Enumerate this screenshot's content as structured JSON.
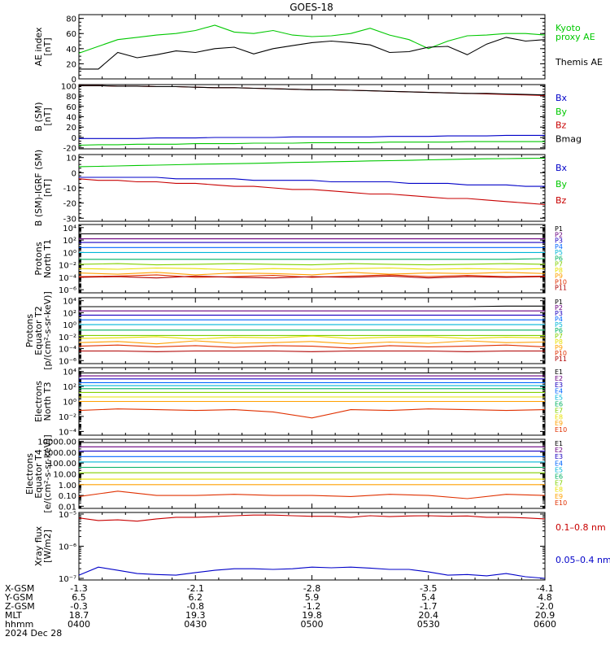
{
  "title": "GOES-18",
  "colors": {
    "black": "#000000",
    "green": "#00c800",
    "blue": "#0000c8",
    "red": "#c80000",
    "seq": [
      "#000000",
      "#6a0080",
      "#1a00c0",
      "#0066ff",
      "#00b6d8",
      "#00b060",
      "#80d000",
      "#e8e000",
      "#ffa000",
      "#e03000",
      "#b00000"
    ]
  },
  "panels": [
    {
      "id": "ae",
      "ylabel": [
        "AE index",
        "[nT]"
      ],
      "ticks": [
        {
          "t": "80",
          "v": 80
        },
        {
          "t": "60",
          "v": 60
        },
        {
          "t": "40",
          "v": 40
        },
        {
          "t": "20",
          "v": 20
        },
        {
          "t": "0",
          "v": 0
        }
      ],
      "ylim": [
        0,
        85
      ],
      "log": false,
      "legend": [
        {
          "text": "Kyoto",
          "color": "#00c800"
        },
        {
          "text": "proxy AE",
          "color": "#00c800"
        },
        {
          "text": "Themis AE",
          "color": "#000000"
        }
      ]
    },
    {
      "id": "bsm",
      "ylabel": [
        "B (SM)",
        "[nT]"
      ],
      "ticks": [
        {
          "t": "100",
          "v": 100
        },
        {
          "t": "80",
          "v": 80
        },
        {
          "t": "60",
          "v": 60
        },
        {
          "t": "40",
          "v": 40
        },
        {
          "t": "20",
          "v": 20
        },
        {
          "t": "0",
          "v": 0
        },
        {
          "t": "-20",
          "v": -20
        }
      ],
      "ylim": [
        -22,
        102
      ],
      "log": false,
      "legend": [
        {
          "text": "Bx",
          "color": "#0000c8"
        },
        {
          "text": "By",
          "color": "#00c800"
        },
        {
          "text": "Bz",
          "color": "#c80000"
        },
        {
          "text": "Bmag",
          "color": "#000000"
        }
      ]
    },
    {
      "id": "bigrf",
      "ylabel": [
        "B (SM)-IGRF (SM)",
        "[nT]"
      ],
      "ticks": [
        {
          "t": "10",
          "v": 10
        },
        {
          "t": "0",
          "v": 0
        },
        {
          "t": "-10",
          "v": -10
        },
        {
          "t": "-20",
          "v": -20
        },
        {
          "t": "-30",
          "v": -30
        }
      ],
      "ylim": [
        -32,
        12
      ],
      "log": false,
      "legend": [
        {
          "text": "Bx",
          "color": "#0000c8"
        },
        {
          "text": "By",
          "color": "#00c800"
        },
        {
          "text": "Bz",
          "color": "#c80000"
        }
      ]
    },
    {
      "id": "pn",
      "ylabel": [
        "Protons",
        "North T1"
      ],
      "ticks": [
        {
          "t": "10⁴",
          "v": 4
        },
        {
          "t": "10²",
          "v": 2
        },
        {
          "t": "10⁰",
          "v": 0
        },
        {
          "t": "10⁻²",
          "v": -2
        },
        {
          "t": "10⁻⁴",
          "v": -4
        },
        {
          "t": "10⁻⁶",
          "v": -6
        }
      ],
      "ylim": [
        -6.5,
        4.5
      ],
      "log": true,
      "legend": [
        "P1",
        "P2",
        "P3",
        "P4",
        "P5",
        "P6",
        "P7",
        "P8",
        "P9",
        "P10",
        "P11"
      ]
    },
    {
      "id": "pe",
      "ylabel": [
        "Protons",
        "Equator T2",
        "[p/(cm²-s-sr-keV)]"
      ],
      "ticks": [
        {
          "t": "10⁴",
          "v": 4
        },
        {
          "t": "10²",
          "v": 2
        },
        {
          "t": "10⁰",
          "v": 0
        },
        {
          "t": "10⁻²",
          "v": -2
        },
        {
          "t": "10⁻⁴",
          "v": -4
        },
        {
          "t": "10⁻⁶",
          "v": -6
        }
      ],
      "ylim": [
        -6.5,
        4.5
      ],
      "log": true,
      "legend": [
        "P1",
        "P2",
        "P3",
        "P4",
        "P5",
        "P6",
        "P7",
        "P8",
        "P9",
        "P10",
        "P11"
      ]
    },
    {
      "id": "en",
      "ylabel": [
        "Electrons",
        "North T3"
      ],
      "ticks": [
        {
          "t": "10⁴",
          "v": 4
        },
        {
          "t": "10²",
          "v": 2
        },
        {
          "t": "10⁰",
          "v": 0
        },
        {
          "t": "10⁻²",
          "v": -2
        },
        {
          "t": "10⁻⁴",
          "v": -4
        }
      ],
      "ylim": [
        -4.5,
        4.5
      ],
      "log": true,
      "legend": [
        "E1",
        "E2",
        "E3",
        "E4",
        "E5",
        "E6",
        "E7",
        "E8",
        "E9",
        "E10"
      ]
    },
    {
      "id": "ee",
      "ylabel": [
        "Electrons",
        "Equator T4",
        "[e/(cm²-s-sr-keV)]"
      ],
      "ticks": [
        {
          "t": "10000.00",
          "v": 4
        },
        {
          "t": "1000.00",
          "v": 3
        },
        {
          "t": "100.00",
          "v": 2
        },
        {
          "t": "10.00",
          "v": 1
        },
        {
          "t": "1.00",
          "v": 0
        },
        {
          "t": "0.10",
          "v": -1
        },
        {
          "t": "0.01",
          "v": -2
        }
      ],
      "ylim": [
        -2.2,
        4.2
      ],
      "log": true,
      "legend": [
        "E1",
        "E2",
        "E3",
        "E4",
        "E5",
        "E6",
        "E7",
        "E8",
        "E9",
        "E10"
      ]
    },
    {
      "id": "xray",
      "ylabel": [
        "Xray flux",
        "[W/m2]"
      ],
      "ticks": [
        {
          "t": "10⁻⁵",
          "v": -5
        },
        {
          "t": "10⁻⁶",
          "v": -6
        },
        {
          "t": "10⁻⁷",
          "v": -7
        }
      ],
      "ylim": [
        -7.05,
        -4.95
      ],
      "log": true,
      "legend": [
        {
          "text": "0.1–0.8 nm",
          "color": "#c80000"
        },
        {
          "text": "0.05–0.4 nm",
          "color": "#0000c8"
        }
      ]
    }
  ],
  "xaxis": {
    "rows": [
      {
        "label": "X-GSM",
        "values": [
          "-1.3",
          "-2.1",
          "-2.8",
          "-3.5",
          "-4.1"
        ]
      },
      {
        "label": "Y-GSM",
        "values": [
          "6.5",
          "6.2",
          "5.9",
          "5.4",
          "4.8"
        ]
      },
      {
        "label": "Z-GSM",
        "values": [
          "-0.3",
          "-0.8",
          "-1.2",
          "-1.7",
          "-2.0"
        ]
      },
      {
        "label": "MLT",
        "values": [
          "18.7",
          "19.3",
          "19.8",
          "20.4",
          "20.9"
        ]
      },
      {
        "label": "hhmm",
        "values": [
          "0400",
          "0430",
          "0500",
          "0530",
          "0600"
        ]
      }
    ],
    "date": "2024 Dec 28"
  },
  "chart_data": {
    "type": "line",
    "title": "GOES-18",
    "x_time_hhmm": [
      "0400",
      "0405",
      "0410",
      "0415",
      "0420",
      "0425",
      "0430",
      "0435",
      "0440",
      "0445",
      "0450",
      "0455",
      "0500",
      "0505",
      "0510",
      "0515",
      "0520",
      "0525",
      "0530",
      "0535",
      "0540",
      "0545",
      "0550",
      "0555",
      "0600"
    ],
    "ae": {
      "xlim_hours": [
        4,
        6
      ],
      "kyoto_proxy_ae": [
        34,
        43,
        52,
        55,
        58,
        60,
        64,
        71,
        62,
        60,
        64,
        58,
        56,
        57,
        60,
        67,
        58,
        52,
        40,
        50,
        57,
        58,
        60,
        60,
        58
      ],
      "themis_ae": [
        13,
        13,
        35,
        28,
        32,
        37,
        35,
        40,
        42,
        33,
        40,
        44,
        48,
        50,
        48,
        45,
        35,
        36,
        42,
        43,
        32,
        46,
        55,
        50,
        52
      ]
    },
    "b_sm": {
      "Bx": [
        -2,
        -2,
        -2,
        -2,
        -1,
        -1,
        -1,
        0,
        0,
        0,
        0,
        1,
        1,
        1,
        1,
        1,
        2,
        2,
        2,
        3,
        3,
        3,
        4,
        4,
        4
      ],
      "By": [
        -15,
        -14,
        -14,
        -13,
        -13,
        -13,
        -12,
        -12,
        -12,
        -11,
        -11,
        -11,
        -10,
        -10,
        -10,
        -10,
        -9,
        -9,
        -9,
        -9,
        -8,
        -8,
        -8,
        -8,
        -8
      ],
      "Bz": [
        100,
        100,
        99,
        99,
        98,
        98,
        97,
        96,
        96,
        95,
        94,
        93,
        92,
        92,
        91,
        90,
        89,
        88,
        87,
        86,
        85,
        84,
        83,
        82,
        81
      ],
      "Bmag": [
        100,
        100,
        99,
        99,
        98,
        98,
        97,
        96,
        96,
        95,
        94,
        93,
        92,
        92,
        91,
        90,
        89,
        88,
        87,
        86,
        85,
        85,
        84,
        83,
        82
      ]
    },
    "b_minus_igrf": {
      "Bx": [
        -3,
        -3,
        -3,
        -3,
        -3,
        -4,
        -4,
        -4,
        -4,
        -5,
        -5,
        -5,
        -5,
        -6,
        -6,
        -6,
        -6,
        -7,
        -7,
        -7,
        -8,
        -8,
        -8,
        -9,
        -9
      ],
      "By": [
        4,
        4.2,
        4.5,
        4.8,
        5,
        5.3,
        5.6,
        5.8,
        6,
        6.2,
        6.5,
        6.8,
        7,
        7.3,
        7.5,
        7.8,
        8,
        8.2,
        8.5,
        8.7,
        9,
        9.2,
        9.3,
        9.5,
        9.6
      ],
      "Bz": [
        -4,
        -5,
        -5,
        -6,
        -6,
        -7,
        -7,
        -8,
        -9,
        -9,
        -10,
        -11,
        -11,
        -12,
        -13,
        -14,
        -14,
        -15,
        -16,
        -17,
        -17,
        -18,
        -19,
        -20,
        -21
      ]
    },
    "protons_north_log10": {
      "P1": [
        3.0,
        3.0,
        3.0,
        3.0,
        3.0,
        3.0,
        3.0,
        3.0,
        3.0,
        3.0,
        3.0,
        3.0,
        3.0
      ],
      "P2": [
        2.2,
        2.2,
        2.2,
        2.2,
        2.2,
        2.2,
        2.2,
        2.2,
        2.2,
        2.2,
        2.2,
        2.2,
        2.2
      ],
      "P3": [
        1.6,
        1.6,
        1.6,
        1.6,
        1.6,
        1.6,
        1.6,
        1.6,
        1.6,
        1.6,
        1.6,
        1.6,
        1.6
      ],
      "P4": [
        0.8,
        0.8,
        0.8,
        0.8,
        0.8,
        0.8,
        0.8,
        0.8,
        0.8,
        0.8,
        0.8,
        0.8,
        0.8
      ],
      "P5": [
        0.0,
        0.0,
        0.0,
        0.0,
        0.0,
        0.0,
        0.0,
        0.0,
        0.0,
        0.0,
        0.0,
        0.0,
        0.0
      ],
      "P6": [
        -1.1,
        -1.1,
        -1.1,
        -1.1,
        -1.1,
        -1.1,
        -1.1,
        -1.1,
        -1.1,
        -1.1,
        -1.1,
        -1.1,
        -1.0
      ],
      "P7": [
        -1.9,
        -1.8,
        -2.0,
        -1.9,
        -1.8,
        -1.9,
        -2.0,
        -1.8,
        -1.9,
        -2.0,
        -1.9,
        -1.8,
        -1.9
      ],
      "P8": [
        -2.6,
        -2.7,
        -2.5,
        -2.6,
        -2.8,
        -2.6,
        -2.7,
        -2.6,
        -2.5,
        -2.7,
        -2.6,
        -2.7,
        -2.6
      ],
      "P9": [
        -3.3,
        -3.5,
        -3.2,
        -3.6,
        -3.3,
        -3.4,
        -3.6,
        -3.2,
        -3.5,
        -3.3,
        -3.4,
        -3.2,
        -3.4
      ],
      "P10": [
        -3.9,
        -3.8,
        -3.6,
        -4.0,
        -3.9,
        -3.7,
        -4.0,
        -3.8,
        -3.6,
        -3.9,
        -3.7,
        -3.9,
        -3.8
      ],
      "P11": [
        -4.0,
        -3.9,
        -4.1,
        -3.8,
        -4.0,
        -4.1,
        -3.9,
        -4.0,
        -3.8,
        -4.1,
        -3.9,
        -4.0,
        -3.9
      ]
    },
    "protons_equator_log10": {
      "P1": [
        3.0,
        3.0,
        3.0,
        3.0,
        3.0,
        3.0,
        3.0,
        3.0,
        3.0,
        3.0,
        3.0,
        3.1,
        3.1
      ],
      "P2": [
        2.3,
        2.3,
        2.3,
        2.3,
        2.3,
        2.3,
        2.3,
        2.3,
        2.3,
        2.3,
        2.3,
        2.3,
        2.3
      ],
      "P3": [
        1.6,
        1.6,
        1.6,
        1.6,
        1.6,
        1.6,
        1.6,
        1.6,
        1.6,
        1.6,
        1.6,
        1.6,
        1.6
      ],
      "P4": [
        0.8,
        0.8,
        0.8,
        0.8,
        0.8,
        0.8,
        0.8,
        0.8,
        0.8,
        0.8,
        0.8,
        0.8,
        0.8
      ],
      "P5": [
        0.0,
        0.0,
        0.0,
        0.0,
        0.0,
        0.0,
        0.0,
        0.0,
        0.0,
        0.0,
        0.0,
        0.0,
        0.0
      ],
      "P6": [
        -0.9,
        -0.9,
        -0.9,
        -0.9,
        -0.9,
        -0.9,
        -0.9,
        -0.9,
        -0.9,
        -0.9,
        -0.9,
        -0.9,
        -0.9
      ],
      "P7": [
        -1.8,
        -1.8,
        -1.8,
        -1.8,
        -1.8,
        -1.8,
        -1.8,
        -1.8,
        -1.8,
        -1.8,
        -1.8,
        -1.8,
        -1.8
      ],
      "P8": [
        -2.3,
        -2.2,
        -2.0,
        -2.4,
        -2.1,
        -2.2,
        -1.9,
        -2.3,
        -2.1,
        -2.0,
        -2.3,
        -2.1,
        -2.2
      ],
      "P9": [
        -3.0,
        -2.8,
        -3.2,
        -2.7,
        -3.1,
        -3.0,
        -2.8,
        -3.2,
        -2.9,
        -3.1,
        -2.7,
        -3.0,
        -2.9
      ],
      "P10": [
        -3.6,
        -3.4,
        -3.7,
        -3.5,
        -3.8,
        -3.5,
        -3.6,
        -3.9,
        -3.5,
        -3.7,
        -3.6,
        -3.4,
        -3.7
      ],
      "P11": [
        -4.4,
        -4.4,
        -4.5,
        -4.4,
        -4.4,
        -4.4,
        -4.5,
        -4.4,
        -4.4,
        -4.4,
        -4.5,
        -4.4,
        -4.4
      ]
    },
    "electrons_north_log10": {
      "E1": [
        3.8,
        3.8,
        3.8,
        3.8,
        3.8,
        3.8,
        3.8,
        3.8,
        3.8,
        3.8,
        3.8,
        3.8,
        3.8
      ],
      "E2": [
        3.4,
        3.4,
        3.4,
        3.4,
        3.4,
        3.4,
        3.4,
        3.4,
        3.4,
        3.4,
        3.4,
        3.4,
        3.4
      ],
      "E3": [
        3.0,
        3.0,
        3.0,
        3.0,
        3.0,
        3.0,
        3.0,
        3.0,
        3.0,
        3.0,
        3.0,
        3.0,
        3.0
      ],
      "E4": [
        2.5,
        2.5,
        2.5,
        2.5,
        2.5,
        2.5,
        2.5,
        2.5,
        2.5,
        2.5,
        2.5,
        2.5,
        2.5
      ],
      "E5": [
        2.1,
        2.1,
        2.1,
        2.1,
        2.1,
        2.1,
        2.1,
        2.1,
        2.1,
        2.1,
        2.1,
        2.1,
        2.1
      ],
      "E6": [
        1.7,
        1.7,
        1.7,
        1.7,
        1.7,
        1.7,
        1.7,
        1.7,
        1.7,
        1.7,
        1.7,
        1.7,
        1.7
      ],
      "E7": [
        1.2,
        1.2,
        1.2,
        1.2,
        1.2,
        1.2,
        1.2,
        1.2,
        1.2,
        1.2,
        1.2,
        1.2,
        1.2
      ],
      "E8": [
        0.6,
        0.6,
        0.6,
        0.6,
        0.6,
        0.6,
        0.6,
        0.6,
        0.6,
        0.6,
        0.6,
        0.6,
        0.6
      ],
      "E9": [
        0.0,
        0.0,
        0.0,
        0.0,
        0.0,
        0.0,
        0.0,
        0.0,
        0.0,
        0.0,
        0.0,
        0.0,
        0.0
      ],
      "E10": [
        -1.2,
        -1.0,
        -1.1,
        -1.2,
        -1.1,
        -1.4,
        -2.2,
        -1.1,
        -1.2,
        -1.0,
        -1.1,
        -1.2,
        -1.1
      ]
    },
    "electrons_equator_log10": {
      "E1": [
        3.9,
        3.9,
        3.9,
        3.9,
        3.9,
        3.9,
        3.9,
        3.9,
        3.9,
        3.9,
        3.9,
        3.9,
        3.9
      ],
      "E2": [
        3.5,
        3.5,
        3.5,
        3.5,
        3.5,
        3.5,
        3.5,
        3.5,
        3.5,
        3.5,
        3.5,
        3.5,
        3.5
      ],
      "E3": [
        3.1,
        3.1,
        3.1,
        3.1,
        3.1,
        3.1,
        3.1,
        3.1,
        3.1,
        3.1,
        3.1,
        3.1,
        3.1
      ],
      "E4": [
        2.6,
        2.6,
        2.6,
        2.6,
        2.6,
        2.6,
        2.6,
        2.6,
        2.6,
        2.6,
        2.6,
        2.6,
        2.6
      ],
      "E5": [
        2.1,
        2.1,
        2.1,
        2.1,
        2.1,
        2.1,
        2.1,
        2.1,
        2.1,
        2.1,
        2.1,
        2.1,
        2.1
      ],
      "E6": [
        1.6,
        1.6,
        1.6,
        1.6,
        1.6,
        1.6,
        1.6,
        1.6,
        1.6,
        1.6,
        1.6,
        1.6,
        1.6
      ],
      "E7": [
        1.1,
        1.1,
        1.1,
        1.1,
        1.1,
        1.1,
        1.1,
        1.1,
        1.1,
        1.1,
        1.1,
        1.1,
        1.1
      ],
      "E8": [
        0.5,
        0.5,
        0.5,
        0.5,
        0.5,
        0.5,
        0.5,
        0.5,
        0.5,
        0.5,
        0.5,
        0.5,
        0.5
      ],
      "E9": [
        0.0,
        0.0,
        0.0,
        0.0,
        0.0,
        0.0,
        0.0,
        0.0,
        0.0,
        0.0,
        0.0,
        0.0,
        0.0
      ],
      "E10": [
        -1.1,
        -0.6,
        -1.0,
        -1.0,
        -0.9,
        -1.0,
        -1.0,
        -1.1,
        -0.9,
        -1.0,
        -1.3,
        -0.9,
        -1.0
      ]
    },
    "xray_log10": {
      "0.1-0.8 nm": [
        -5.12,
        -5.2,
        -5.18,
        -5.22,
        -5.15,
        -5.1,
        -5.1,
        -5.08,
        -5.05,
        -5.03,
        -5.03,
        -5.05,
        -5.07,
        -5.07,
        -5.1,
        -5.05,
        -5.08,
        -5.06,
        -5.05,
        -5.07,
        -5.06,
        -5.1,
        -5.1,
        -5.12,
        -5.15
      ],
      "0.05-0.4 nm": [
        -6.9,
        -6.65,
        -6.75,
        -6.85,
        -6.88,
        -6.9,
        -6.82,
        -6.75,
        -6.7,
        -6.7,
        -6.72,
        -6.7,
        -6.65,
        -6.67,
        -6.65,
        -6.68,
        -6.72,
        -6.72,
        -6.8,
        -6.9,
        -6.88,
        -6.92,
        -6.85,
        -6.95,
        -7.0
      ]
    }
  }
}
